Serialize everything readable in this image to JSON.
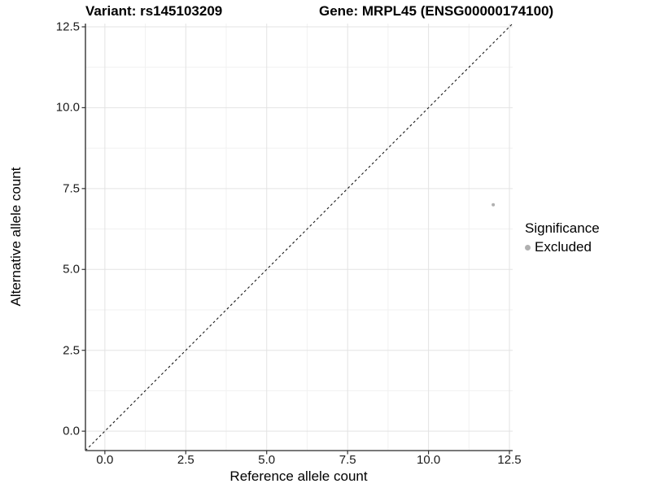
{
  "plot": {
    "title_left": "Variant: rs145103209",
    "title_right": "Gene: MRPL45 (ENSG00000174100)"
  },
  "chart_data": {
    "type": "scatter",
    "title": "Variant: rs145103209    Gene: MRPL45 (ENSG00000174100)",
    "xlabel": "Reference allele count",
    "ylabel": "Alternative allele count",
    "xlim": [
      -0.6,
      12.6
    ],
    "ylim": [
      -0.6,
      12.6
    ],
    "major_ticks": [
      0,
      2.5,
      5,
      7.5,
      10,
      12.5
    ],
    "minor_ticks": [
      1.25,
      3.75,
      6.25,
      8.75,
      11.25
    ],
    "tick_labels": [
      "0.0",
      "2.5",
      "5.0",
      "7.5",
      "10.0",
      "12.5"
    ],
    "grid": "major+minor",
    "reference_line": {
      "type": "identity",
      "style": "dashed",
      "from": [
        -0.6,
        -0.6
      ],
      "to": [
        12.6,
        12.6
      ]
    },
    "series": [
      {
        "name": "Excluded",
        "color": "#b0b0b0",
        "points": [
          {
            "x": 12,
            "y": 7
          }
        ]
      }
    ],
    "legend": {
      "title": "Significance",
      "position": "right",
      "items": [
        {
          "label": "Excluded",
          "color": "#b0b0b0"
        }
      ]
    },
    "colors": {
      "grid_major": "#e3e3e3",
      "grid_minor": "#f1f1f1",
      "axis_line": "#4d4d4d",
      "tick_mark": "#333333",
      "reference_line": "#1a1a1a",
      "point": "#b0b0b0"
    }
  }
}
